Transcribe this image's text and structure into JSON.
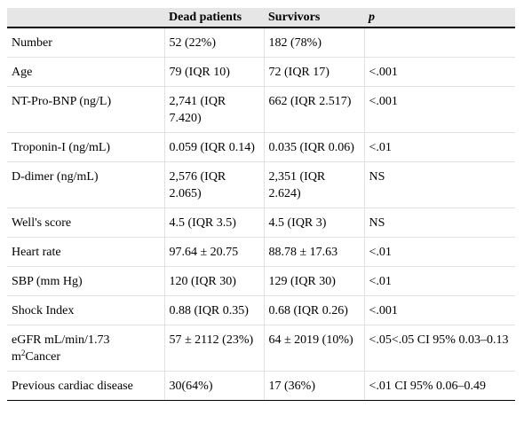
{
  "table": {
    "headers": [
      "",
      "Dead patients",
      "Survivors",
      "p"
    ],
    "rows": [
      {
        "label": "Number",
        "dead": "52 (22%)",
        "surv": "182 (78%)",
        "p": ""
      },
      {
        "label": "Age",
        "dead": "79 (IQR 10)",
        "surv": "72 (IQR 17)",
        "p": "<.001"
      },
      {
        "label": "NT-Pro-BNP (ng/L)",
        "dead": "2,741 (IQR 7.420)",
        "surv": "662 (IQR 2.517)",
        "p": "<.001"
      },
      {
        "label": "Troponin-I (ng/mL)",
        "dead": "0.059 (IQR 0.14)",
        "surv": "0.035 (IQR 0.06)",
        "p": "<.01"
      },
      {
        "label": "D-dimer (ng/mL)",
        "dead": "2,576 (IQR 2.065)",
        "surv": "2,351 (IQR 2.624)",
        "p": "NS"
      },
      {
        "label": "Well's score",
        "dead": "4.5 (IQR 3.5)",
        "surv": "4.5 (IQR 3)",
        "p": "NS"
      },
      {
        "label": "Heart rate",
        "dead": "97.64 ± 20.75",
        "surv": "88.78 ± 17.63",
        "p": "<.01"
      },
      {
        "label": "SBP (mm Hg)",
        "dead": "120 (IQR 30)",
        "surv": "129 (IQR 30)",
        "p": "<.01"
      },
      {
        "label": "Shock Index",
        "dead": "0.88 (IQR 0.35)",
        "surv": "0.68 (IQR 0.26)",
        "p": "<.001"
      },
      {
        "label_pre": "eGFR mL/min/1.73 m",
        "label_sup": "2",
        "label_post": "Cancer",
        "dead": "57 ± 2112 (23%)",
        "surv": "64 ± 2019 (10%)",
        "p": "<.05<.05 CI 95% 0.03–0.13"
      },
      {
        "label": "Previous cardiac disease",
        "dead": "30(64%)",
        "surv": "17 (36%)",
        "p": "<.01 CI 95% 0.06–0.49"
      }
    ]
  }
}
